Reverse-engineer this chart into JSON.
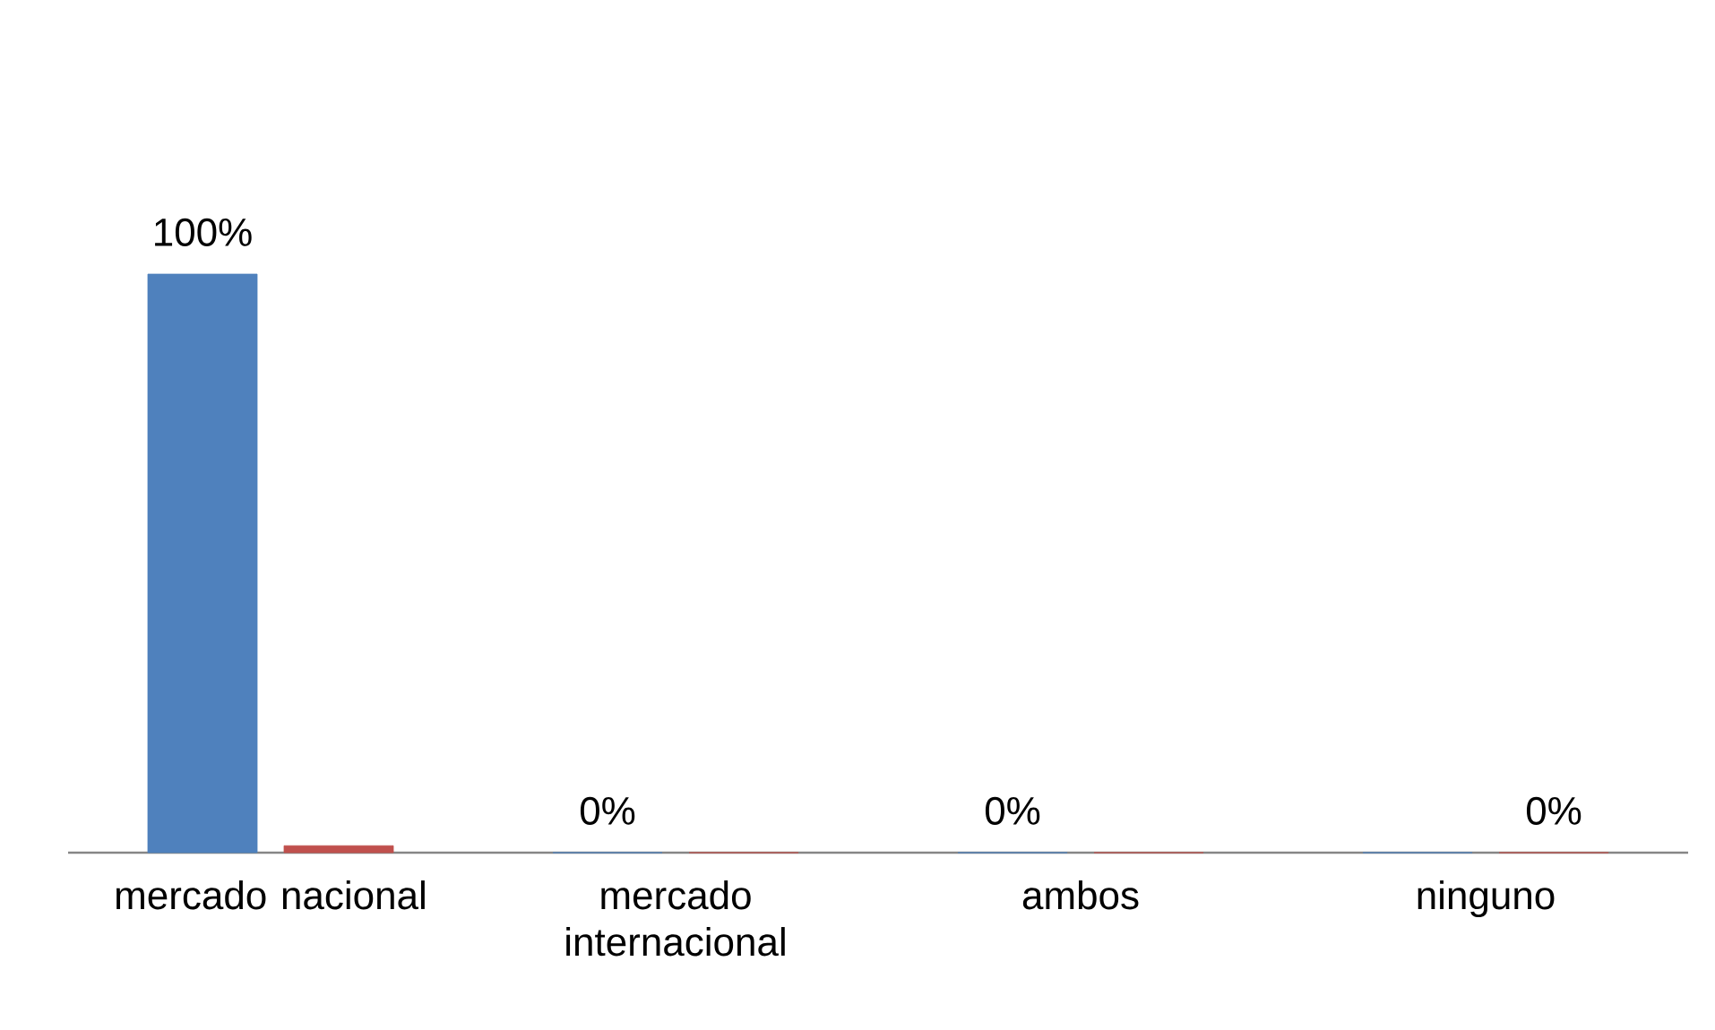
{
  "chart_data": {
    "type": "bar",
    "tick_labels": "x",
    "categories": [
      "mercado nacional",
      "mercado internacional",
      "ambos",
      "ninguno"
    ],
    "series": [
      {
        "color": "#4f81bd",
        "values": [
          100,
          0,
          0,
          0
        ],
        "value_labels": [
          "100%",
          "0%",
          "0%",
          null
        ]
      },
      {
        "color": "#c0504d",
        "values": [
          1.2,
          0,
          0,
          0
        ],
        "value_labels": [
          null,
          null,
          null,
          "0%"
        ]
      }
    ]
  }
}
